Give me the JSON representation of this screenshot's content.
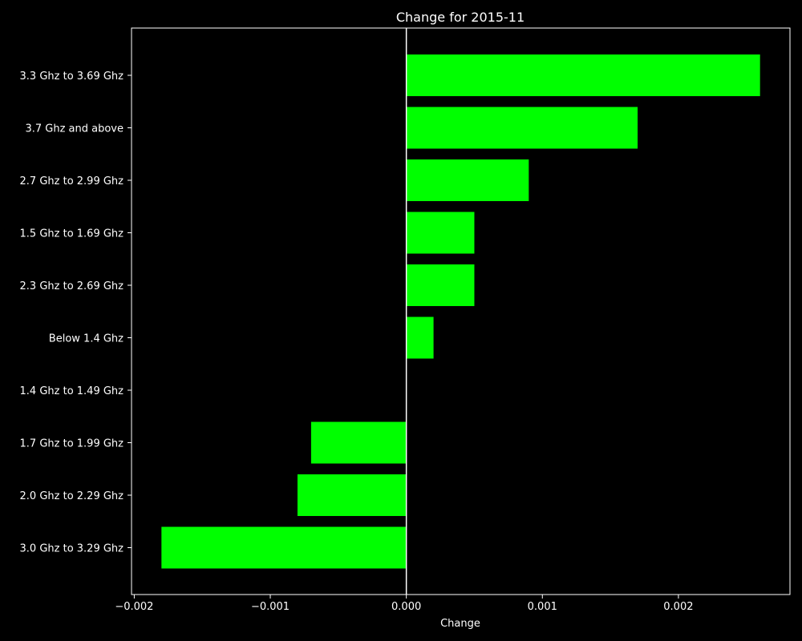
{
  "chart_data": {
    "type": "bar",
    "orientation": "horizontal",
    "title": "Change for 2015-11",
    "xlabel": "Change",
    "ylabel": "",
    "categories": [
      "3.3 Ghz to 3.69 Ghz",
      "3.7 Ghz and above",
      "2.7 Ghz to 2.99 Ghz",
      "1.5 Ghz to 1.69 Ghz",
      "2.3 Ghz to 2.69 Ghz",
      "Below 1.4 Ghz",
      "1.4 Ghz to 1.49 Ghz",
      "1.7 Ghz to 1.99 Ghz",
      "2.0 Ghz to 2.29 Ghz",
      "3.0 Ghz to 3.29 Ghz"
    ],
    "values": [
      0.0026,
      0.0017,
      0.0009,
      0.0005,
      0.0005,
      0.0002,
      0.0,
      -0.0007,
      -0.0008,
      -0.0018
    ],
    "xlim": [
      -0.00202,
      0.00282
    ],
    "xticks": [
      -0.002,
      -0.001,
      0.0,
      0.001,
      0.002
    ],
    "xtick_labels": [
      "−0.002",
      "−0.001",
      "0.000",
      "0.001",
      "0.002"
    ],
    "grid": false,
    "zero_line": true,
    "colors": {
      "background": "#000000",
      "bar": "#00ff00",
      "axes": "#ffffff",
      "text": "#ffffff"
    }
  }
}
